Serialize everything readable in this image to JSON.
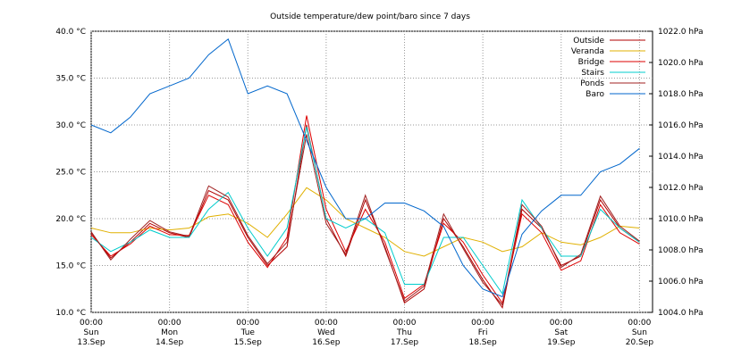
{
  "chart_data": {
    "type": "line",
    "title": "Outside temperature/dew point/baro since 7 days",
    "x": [
      0,
      6,
      12,
      18,
      24,
      30,
      36,
      42,
      48,
      54,
      60,
      66,
      72,
      78,
      84,
      90,
      96,
      102,
      108,
      114,
      120,
      126,
      132,
      138,
      144,
      150,
      156,
      162,
      168
    ],
    "xlim": [
      0,
      172
    ],
    "xticks": [
      {
        "value": 0,
        "label": [
          "00:00",
          "Sun",
          "13.Sep"
        ]
      },
      {
        "value": 24,
        "label": [
          "00:00",
          "Mon",
          "14.Sep"
        ]
      },
      {
        "value": 48,
        "label": [
          "00:00",
          "Tue",
          "15.Sep"
        ]
      },
      {
        "value": 72,
        "label": [
          "00:00",
          "Wed",
          "16.Sep"
        ]
      },
      {
        "value": 96,
        "label": [
          "00:00",
          "Thu",
          "17.Sep"
        ]
      },
      {
        "value": 120,
        "label": [
          "00:00",
          "Fri",
          "18.Sep"
        ]
      },
      {
        "value": 144,
        "label": [
          "00:00",
          "Sat",
          "19.Sep"
        ]
      },
      {
        "value": 168,
        "label": [
          "00:00",
          "Sun",
          "20.Sep"
        ]
      }
    ],
    "ylim": [
      10,
      40
    ],
    "yticks": [
      {
        "value": 10,
        "label": "10.0 °C"
      },
      {
        "value": 15,
        "label": "15.0 °C"
      },
      {
        "value": 20,
        "label": "20.0 °C"
      },
      {
        "value": 25,
        "label": "25.0 °C"
      },
      {
        "value": 30,
        "label": "30.0 °C"
      },
      {
        "value": 35,
        "label": "35.0 °C"
      },
      {
        "value": 40,
        "label": "40.0 °C"
      }
    ],
    "y2lim": [
      1004,
      1022
    ],
    "y2ticks": [
      {
        "value": 1004,
        "label": "1004.0 hPa"
      },
      {
        "value": 1006,
        "label": "1006.0 hPa"
      },
      {
        "value": 1008,
        "label": "1008.0 hPa"
      },
      {
        "value": 1010,
        "label": "1010.0 hPa"
      },
      {
        "value": 1012,
        "label": "1012.0 hPa"
      },
      {
        "value": 1014,
        "label": "1014.0 hPa"
      },
      {
        "value": 1016,
        "label": "1016.0 hPa"
      },
      {
        "value": 1018,
        "label": "1018.0 hPa"
      },
      {
        "value": 1020,
        "label": "1020.0 hPa"
      },
      {
        "value": 1022,
        "label": "1022.0 hPa"
      }
    ],
    "grid": true,
    "legend": "top-right",
    "series": [
      {
        "name": "Outside",
        "color": "#b00000",
        "values": [
          18.5,
          15.8,
          17.5,
          19.5,
          18.5,
          18,
          23,
          22,
          18,
          15,
          17,
          30,
          20,
          16,
          22,
          17,
          11,
          12.5,
          20,
          17,
          13.5,
          10.5,
          21,
          19,
          15,
          16,
          22,
          19,
          17.5
        ]
      },
      {
        "name": "Veranda",
        "color": "#e0b000",
        "values": [
          19,
          18.5,
          18.5,
          19,
          18.8,
          19,
          20.2,
          20.5,
          19.5,
          18,
          20.5,
          23.3,
          22,
          20,
          19,
          18,
          16.5,
          16,
          17,
          18,
          17.5,
          16.5,
          17,
          18.5,
          17.5,
          17.2,
          18,
          19.2,
          19
        ]
      },
      {
        "name": "Bridge",
        "color": "#dd0000",
        "values": [
          18.3,
          16,
          17.3,
          19.2,
          18.3,
          18.2,
          22.5,
          21.5,
          17.5,
          14.8,
          18,
          31,
          21,
          16.5,
          21,
          17.5,
          11.5,
          13,
          19.5,
          17.5,
          14,
          11,
          20.5,
          18.5,
          14.5,
          15.5,
          21.5,
          18.5,
          17.3
        ]
      },
      {
        "name": "Stairs",
        "color": "#00cccc",
        "values": [
          18,
          16.5,
          17.5,
          18.8,
          18,
          18,
          21,
          22.8,
          19,
          16,
          19,
          29.8,
          20,
          19,
          20,
          18.5,
          13,
          13,
          18,
          18,
          15,
          12,
          22,
          19,
          16,
          16,
          21,
          19,
          17.5
        ]
      },
      {
        "name": "Ponds",
        "color": "#a02020",
        "values": [
          18.6,
          15.6,
          17.8,
          19.8,
          18.6,
          18.1,
          23.5,
          22.3,
          18.2,
          15.2,
          17.5,
          29,
          19.5,
          16.2,
          22.5,
          16.8,
          11.2,
          12.8,
          20.5,
          16.8,
          13.2,
          10.8,
          21.5,
          19.2,
          14.8,
          16.2,
          22.4,
          19.2,
          17.6
        ]
      },
      {
        "name": "Baro",
        "color": "#0066cc",
        "axis": "y2",
        "values": [
          1016,
          1015.5,
          1016.5,
          1018,
          1018.5,
          1019,
          1020.5,
          1021.5,
          1018,
          1018.5,
          1018,
          1015,
          1012,
          1010,
          1010,
          1011,
          1011,
          1010.5,
          1009.5,
          1007,
          1005.5,
          1005,
          1009,
          1010.5,
          1011.5,
          1011.5,
          1013,
          1013.5,
          1014.5
        ]
      }
    ]
  }
}
